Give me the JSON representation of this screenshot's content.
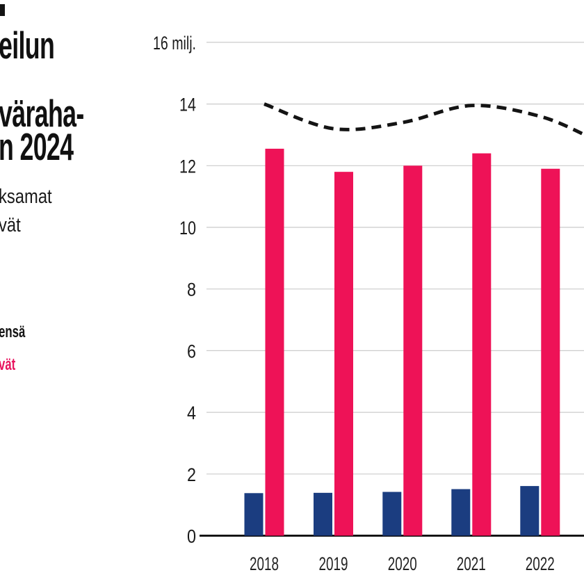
{
  "header": {
    "line1_fragment": "eilun",
    "line2_fragment": "väraha-",
    "line3_fragment": "n 2024"
  },
  "subtitle": {
    "line1_fragment": "ksamat",
    "line2_fragment": "vät"
  },
  "legend": {
    "items": [
      {
        "label_fragment": "ensä",
        "color": "#141414",
        "marker": "dashed-line"
      },
      {
        "label_fragment": "vät",
        "color": "#e8155f",
        "marker": "pink-bar"
      }
    ]
  },
  "colors": {
    "pink_bar": "#ee1257",
    "blue_bar": "#1b3d80",
    "dashed_line": "#141414",
    "grid_line": "#cbcbcb",
    "axis_line": "#000000",
    "tick_text": "#1a1a1a"
  },
  "chart_data": {
    "type": "bar",
    "title_fragment": "eilun / väraha- / n 2024 (cropped)",
    "x": [
      "2018",
      "2019",
      "2020",
      "2021",
      "2022"
    ],
    "series": [
      {
        "name": "pink-bars",
        "legend_fragment": "vät",
        "type": "bar",
        "color": "#ee1257",
        "values": [
          12.55,
          11.8,
          12.0,
          12.4,
          11.9
        ]
      },
      {
        "name": "blue-bars",
        "legend_fragment": "",
        "type": "bar",
        "color": "#1b3d80",
        "values": [
          1.38,
          1.39,
          1.42,
          1.51,
          1.61
        ]
      },
      {
        "name": "total-line",
        "legend_fragment": "ensä",
        "type": "line-dashed",
        "color": "#141414",
        "values": [
          14.0,
          13.2,
          13.4,
          13.95,
          13.6
        ],
        "offscreen_end_value": 12.95
      }
    ],
    "yticks": [
      0,
      2,
      4,
      6,
      8,
      10,
      12,
      14
    ],
    "ytick_top": {
      "value": 16,
      "label": "16 milj."
    },
    "ylim": [
      0,
      16
    ],
    "grid": true,
    "legend_position": "left"
  }
}
